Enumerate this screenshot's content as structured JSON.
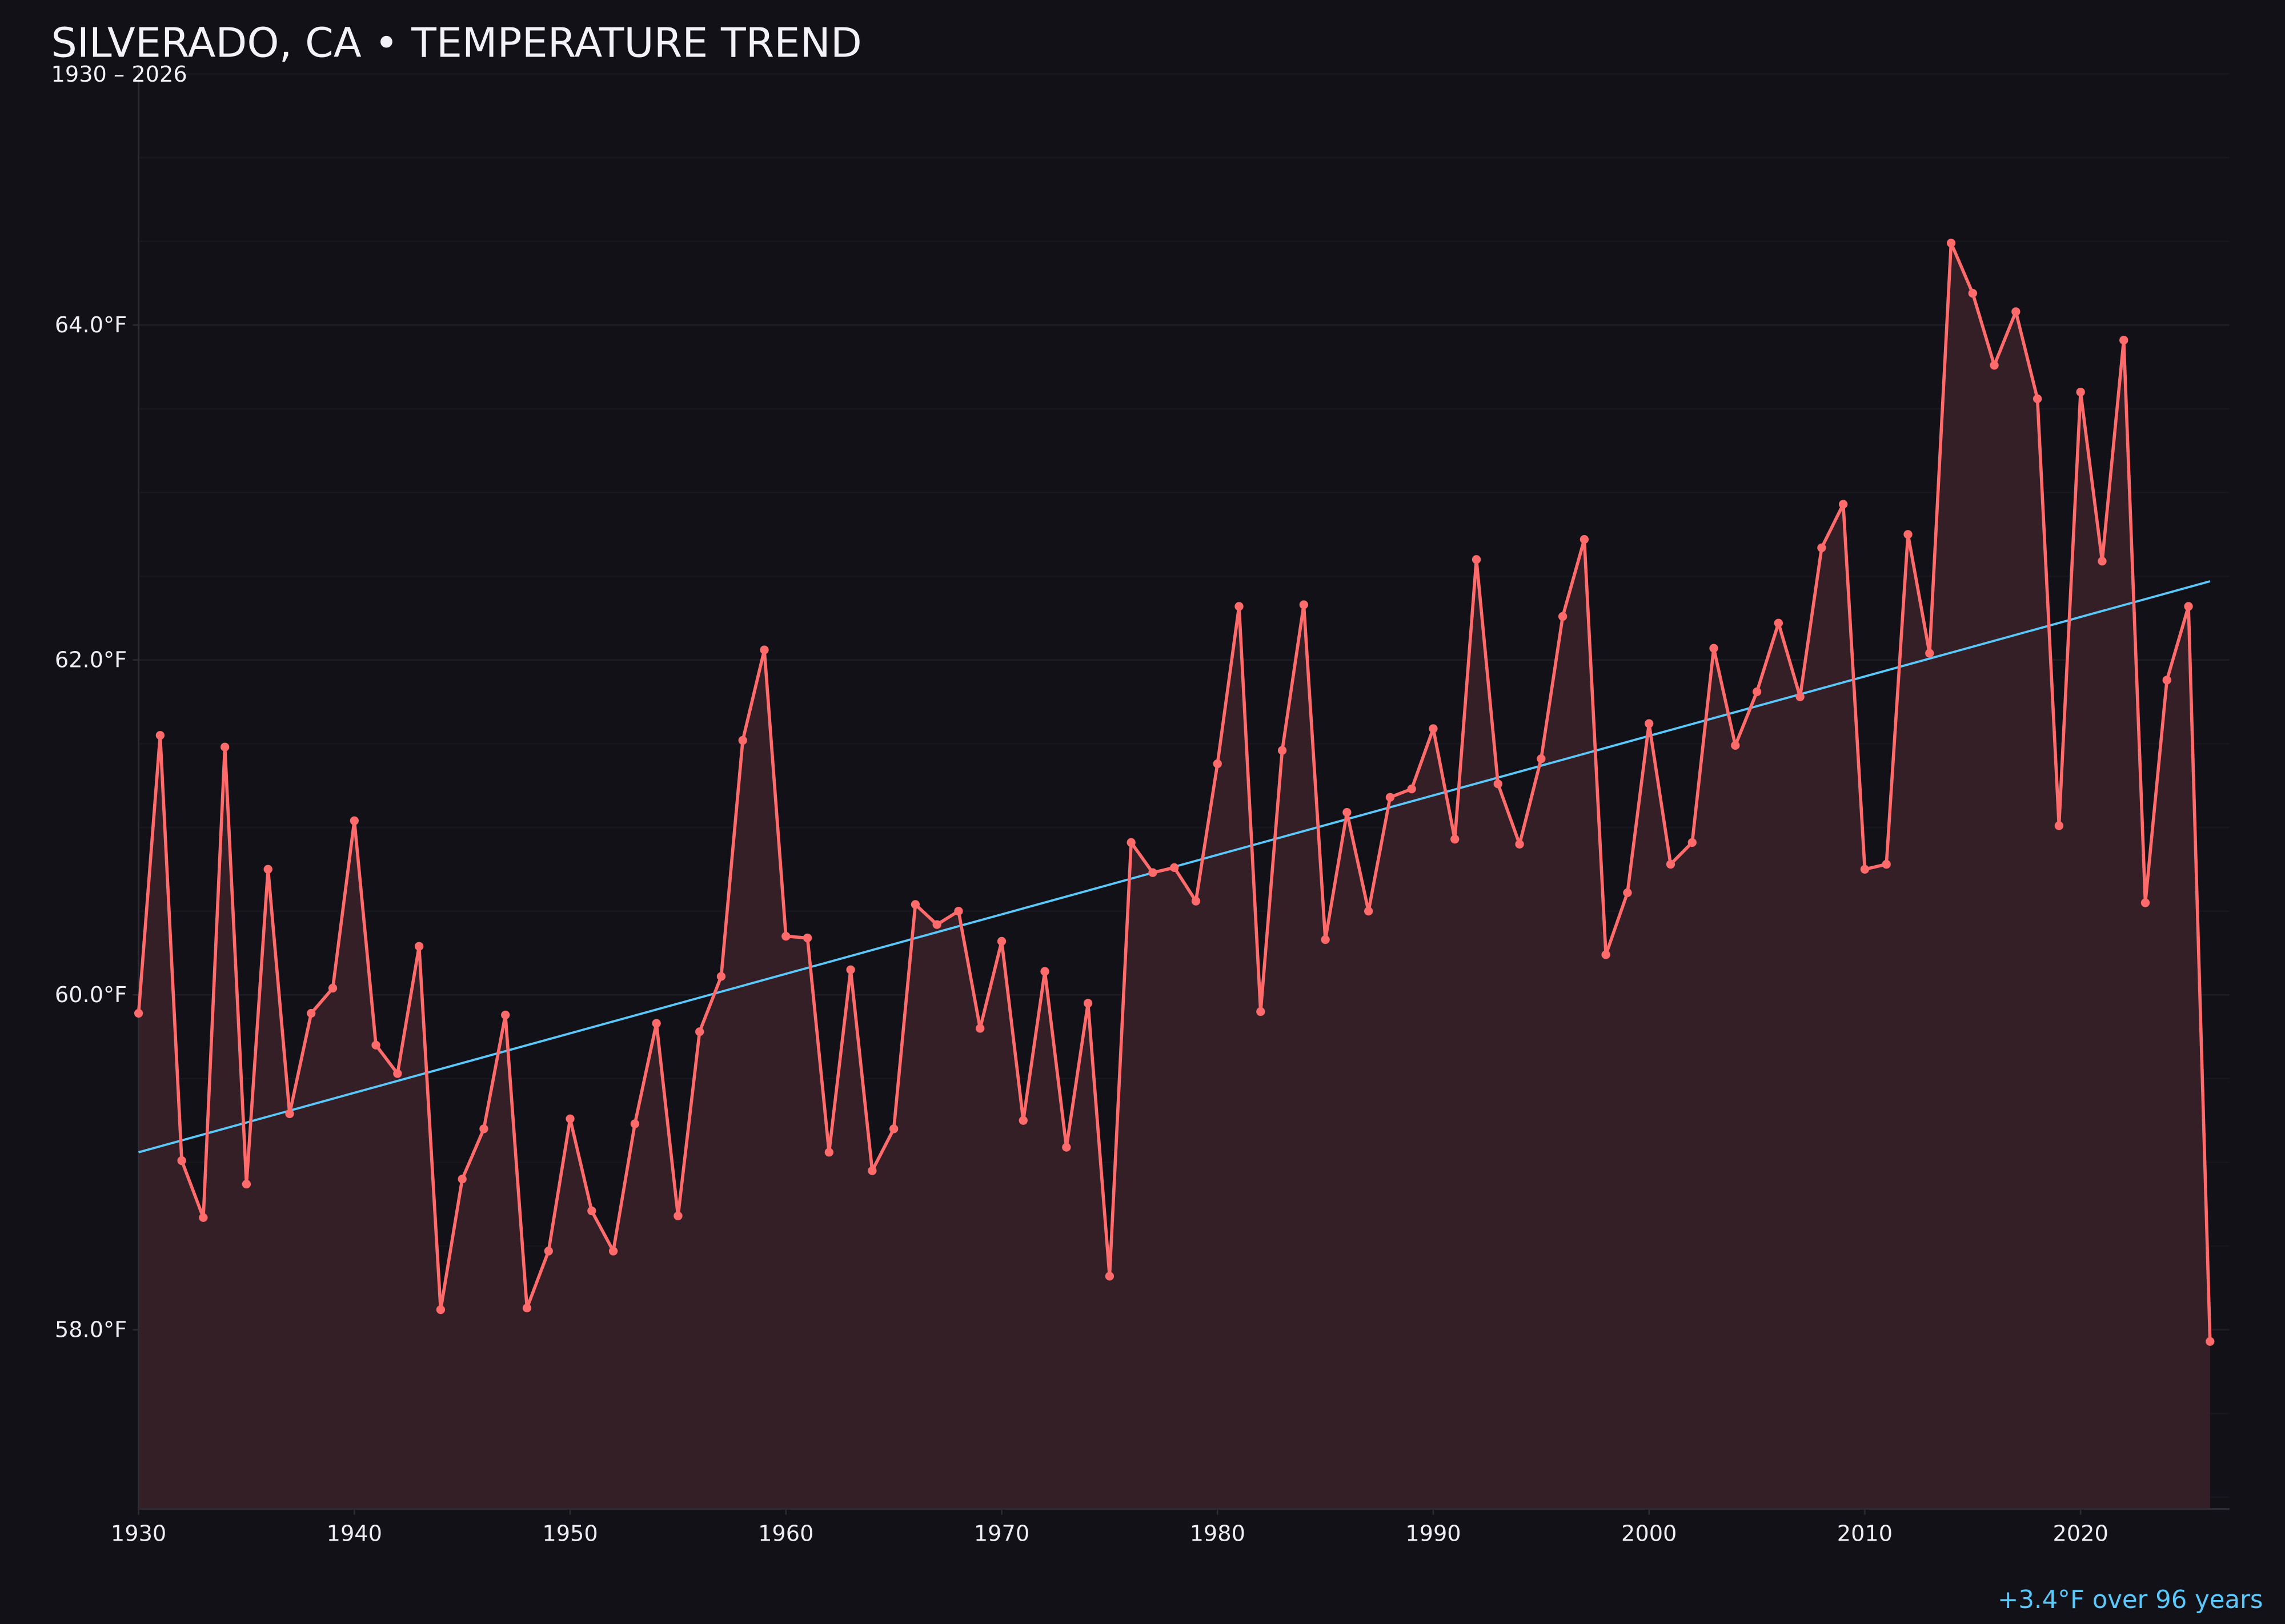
{
  "chart_data": {
    "type": "line",
    "title": "SILVERADO, CA • TEMPERATURE TREND",
    "subtitle": "1930 – 2026",
    "annotation": "+3.4°F over 96 years",
    "xlabel": "",
    "ylabel": "",
    "xlim": [
      1930,
      2026.9
    ],
    "ylim": [
      56.93,
      65.55
    ],
    "x_ticks": [
      1930,
      1940,
      1950,
      1960,
      1970,
      1980,
      1990,
      2000,
      2010,
      2020
    ],
    "y_ticks": [
      58,
      60,
      62,
      64
    ],
    "y_tick_labels": [
      "58.0°F",
      "60.0°F",
      "62.0°F",
      "64.0°F"
    ],
    "grid": "horizontal, major every 2°F, minor every 0.5°F",
    "x": [
      1930,
      1931,
      1932,
      1933,
      1934,
      1935,
      1936,
      1937,
      1938,
      1939,
      1940,
      1941,
      1942,
      1943,
      1944,
      1945,
      1946,
      1947,
      1948,
      1949,
      1950,
      1951,
      1952,
      1953,
      1954,
      1955,
      1956,
      1957,
      1958,
      1959,
      1960,
      1961,
      1962,
      1963,
      1964,
      1965,
      1966,
      1967,
      1968,
      1969,
      1970,
      1971,
      1972,
      1973,
      1974,
      1975,
      1976,
      1977,
      1978,
      1979,
      1980,
      1981,
      1982,
      1983,
      1984,
      1985,
      1986,
      1987,
      1988,
      1989,
      1990,
      1991,
      1992,
      1993,
      1994,
      1995,
      1996,
      1997,
      1998,
      1999,
      2000,
      2001,
      2002,
      2003,
      2004,
      2005,
      2006,
      2007,
      2008,
      2009,
      2010,
      2011,
      2012,
      2013,
      2014,
      2015,
      2016,
      2017,
      2018,
      2019,
      2020,
      2021,
      2022,
      2023,
      2024,
      2025,
      2026
    ],
    "series": [
      {
        "values": [
          59.89,
          61.55,
          59.01,
          58.67,
          61.48,
          58.87,
          60.75,
          59.29,
          59.89,
          60.04,
          61.04,
          59.7,
          59.53,
          60.29,
          58.12,
          58.9,
          59.2,
          59.88,
          58.13,
          58.47,
          59.26,
          58.71,
          58.47,
          59.23,
          59.83,
          58.68,
          59.78,
          60.11,
          61.52,
          62.06,
          60.35,
          60.34,
          59.06,
          60.15,
          58.95,
          59.2,
          60.54,
          60.42,
          60.5,
          59.8,
          60.32,
          59.25,
          60.14,
          59.09,
          59.95,
          58.32,
          60.91,
          60.73,
          60.76,
          60.56,
          61.38,
          62.32,
          59.9,
          61.46,
          62.33,
          60.33,
          61.09,
          60.5,
          61.18,
          61.23,
          61.59,
          60.93,
          62.6,
          61.26,
          60.9,
          61.41,
          62.26,
          62.72,
          60.24,
          60.61,
          61.62,
          60.78,
          60.91,
          62.07,
          61.49,
          61.81,
          62.22,
          61.78,
          62.67,
          62.93,
          60.75,
          60.78,
          62.75,
          62.04,
          64.49,
          64.19,
          63.76,
          64.08,
          63.56,
          61.01,
          63.6,
          62.59,
          63.91,
          60.55,
          61.88,
          62.32,
          57.93
        ],
        "color": "#ff6b6b",
        "fill": "#351f26"
      }
    ],
    "trend": {
      "start": [
        1930,
        59.06
      ],
      "end": [
        2026,
        62.47
      ],
      "color": "#5ac8fa"
    },
    "colors": {
      "background": "#121118",
      "axis": "#2c2b33",
      "grid": "#1c1b22",
      "text": "#eeeef2"
    }
  }
}
